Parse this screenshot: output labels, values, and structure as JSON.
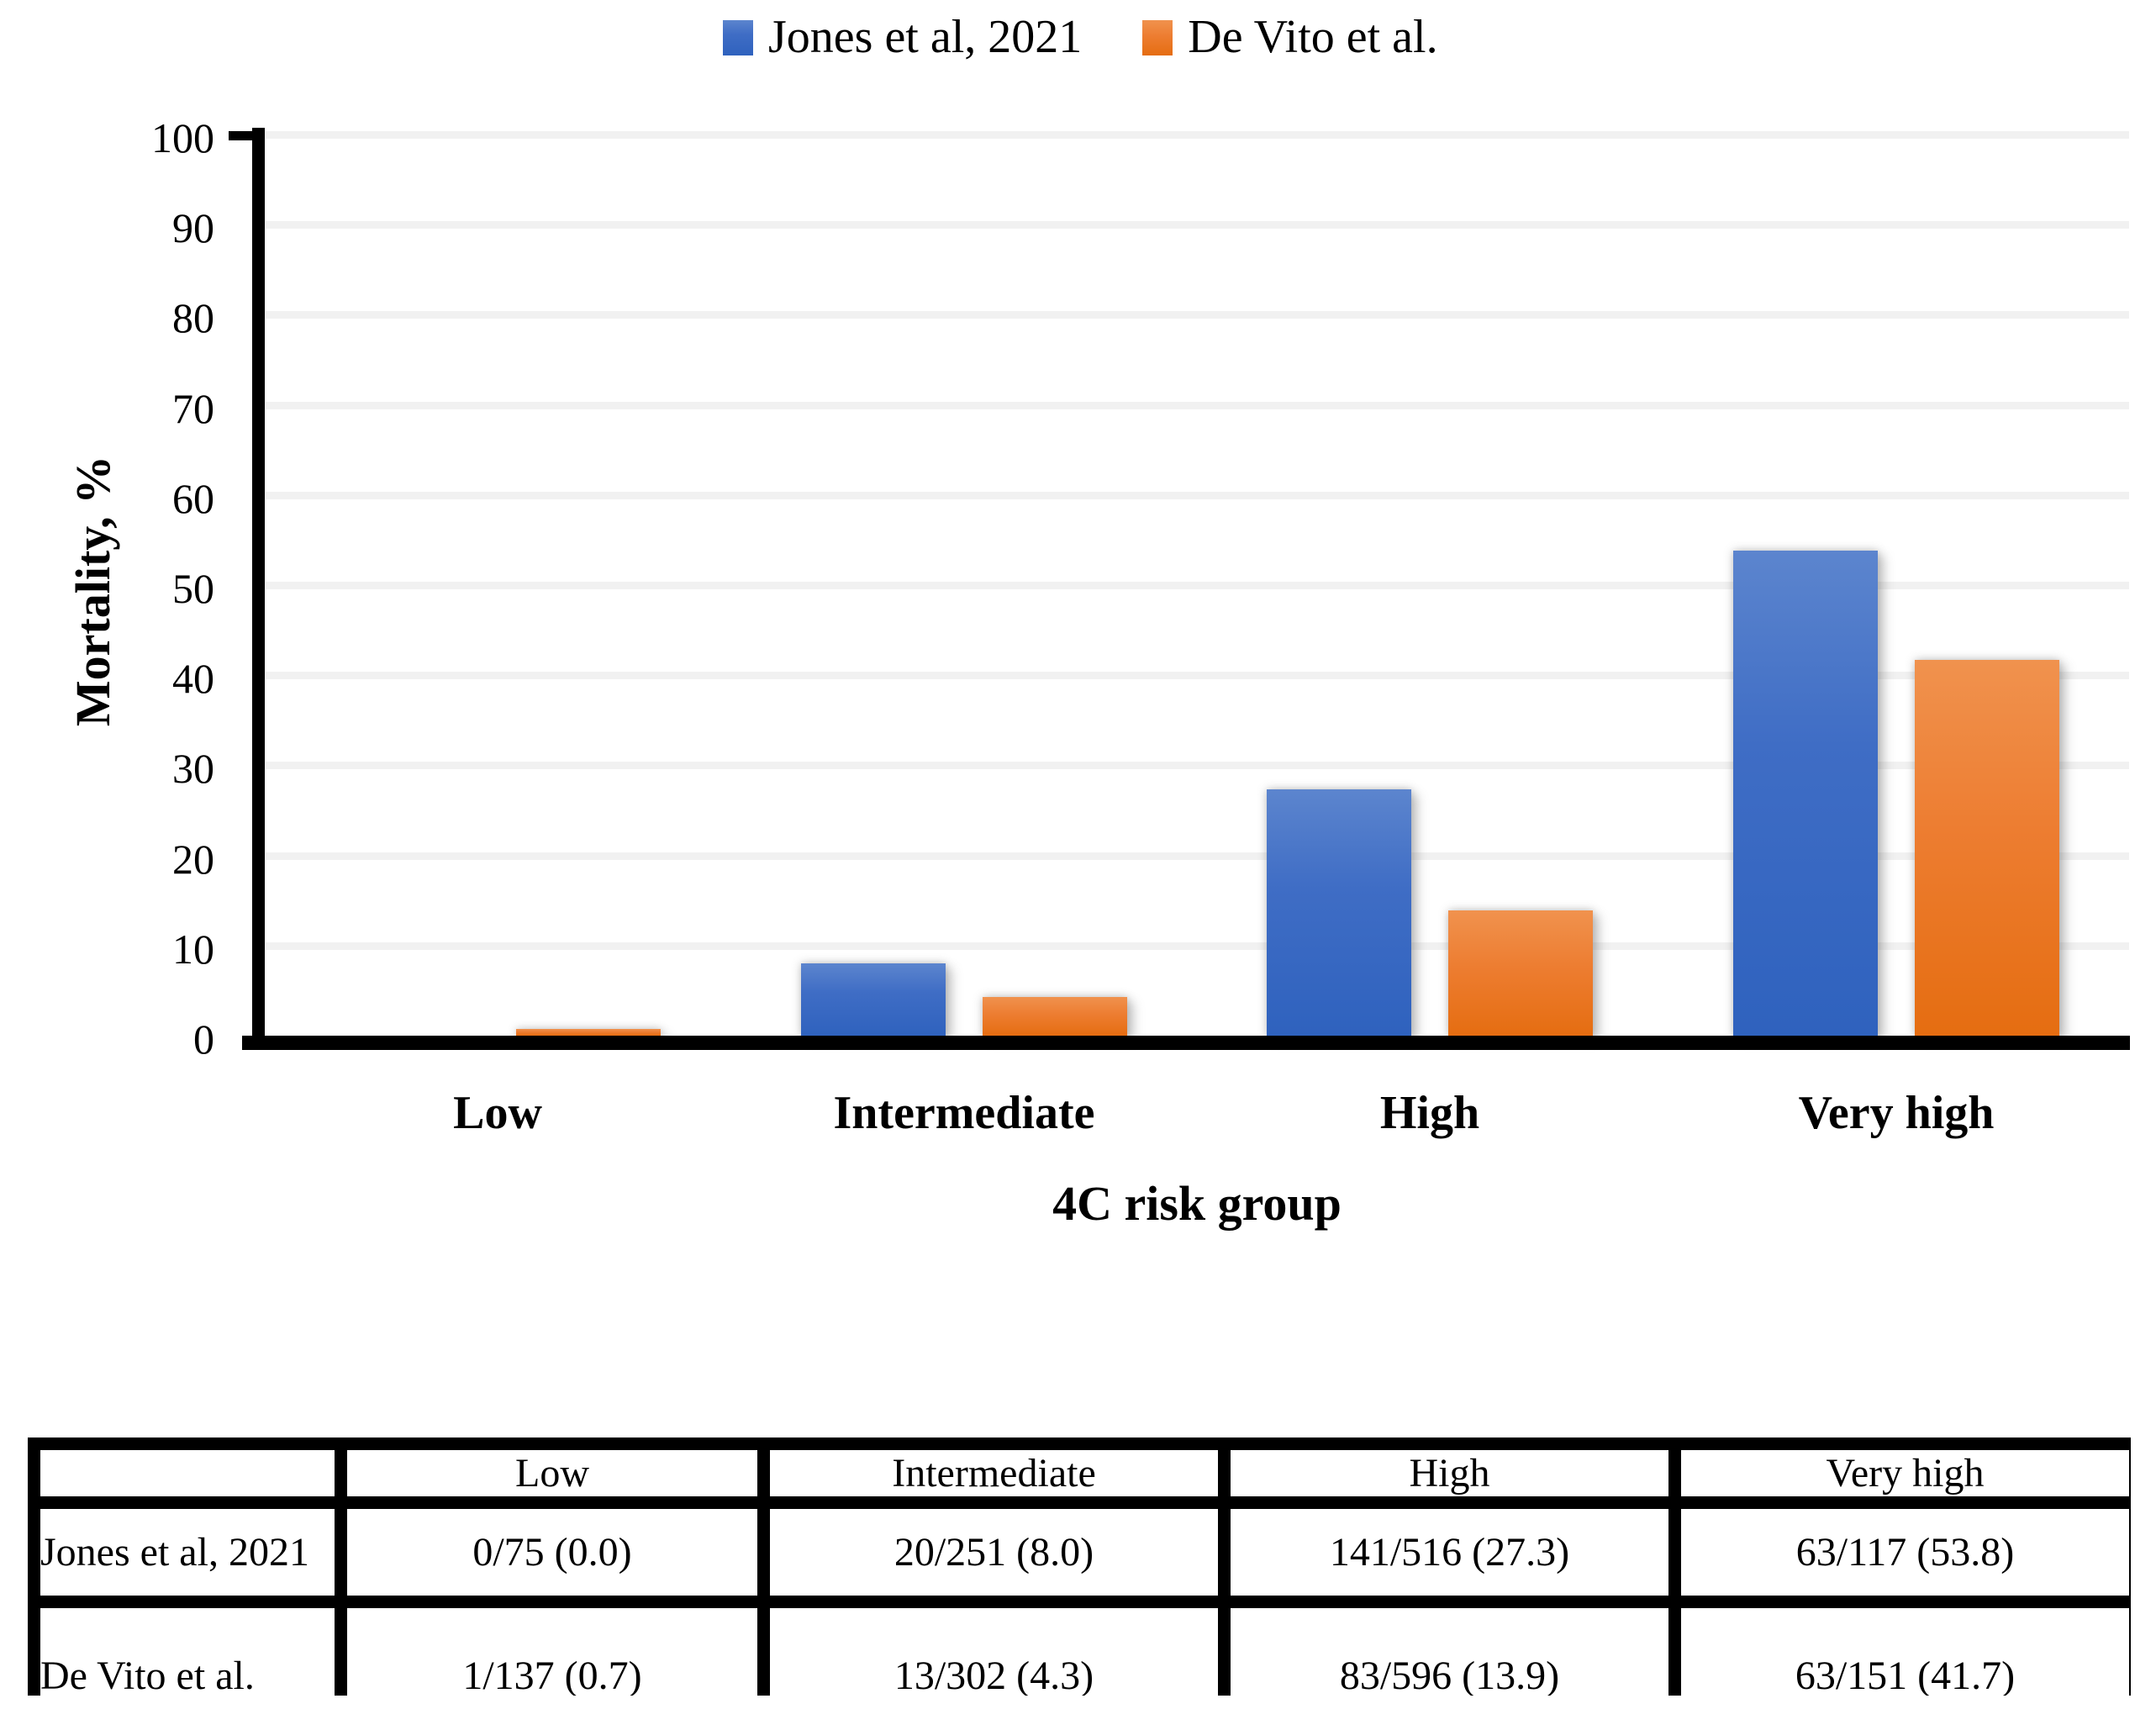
{
  "chart_data": {
    "type": "bar",
    "title": "",
    "categories": [
      "Low",
      "Intermediate",
      "High",
      "Very high"
    ],
    "series": [
      {
        "name": "Jones et al, 2021",
        "color": "#4472C4",
        "values": [
          0.0,
          8.0,
          27.3,
          53.8
        ]
      },
      {
        "name": "De Vito et al.",
        "color": "#ED7D31",
        "values": [
          0.7,
          4.3,
          13.9,
          41.7
        ]
      }
    ],
    "xlabel": "4C risk group",
    "ylabel": "Mortality, %",
    "ylim": [
      0,
      100
    ],
    "ytick_step": 10,
    "grid": true,
    "legend_position": "top"
  },
  "table": {
    "columns": [
      "",
      "Low",
      "Intermediate",
      "High",
      "Very high"
    ],
    "rows": [
      {
        "label": "Jones et al, 2021",
        "values": [
          "0/75 (0.0)",
          "20/251 (8.0)",
          "141/516 (27.3)",
          "63/117 (53.8)"
        ]
      },
      {
        "label": "De Vito et al.",
        "values": [
          "1/137 (0.7)",
          "13/302 (4.3)",
          "83/596 (13.9)",
          "63/151 (41.7)"
        ]
      }
    ]
  },
  "colors": {
    "series_blue": "#4472C4",
    "series_orange": "#ED7D31",
    "gridline": "#F1F1F1",
    "axis": "#000000"
  }
}
